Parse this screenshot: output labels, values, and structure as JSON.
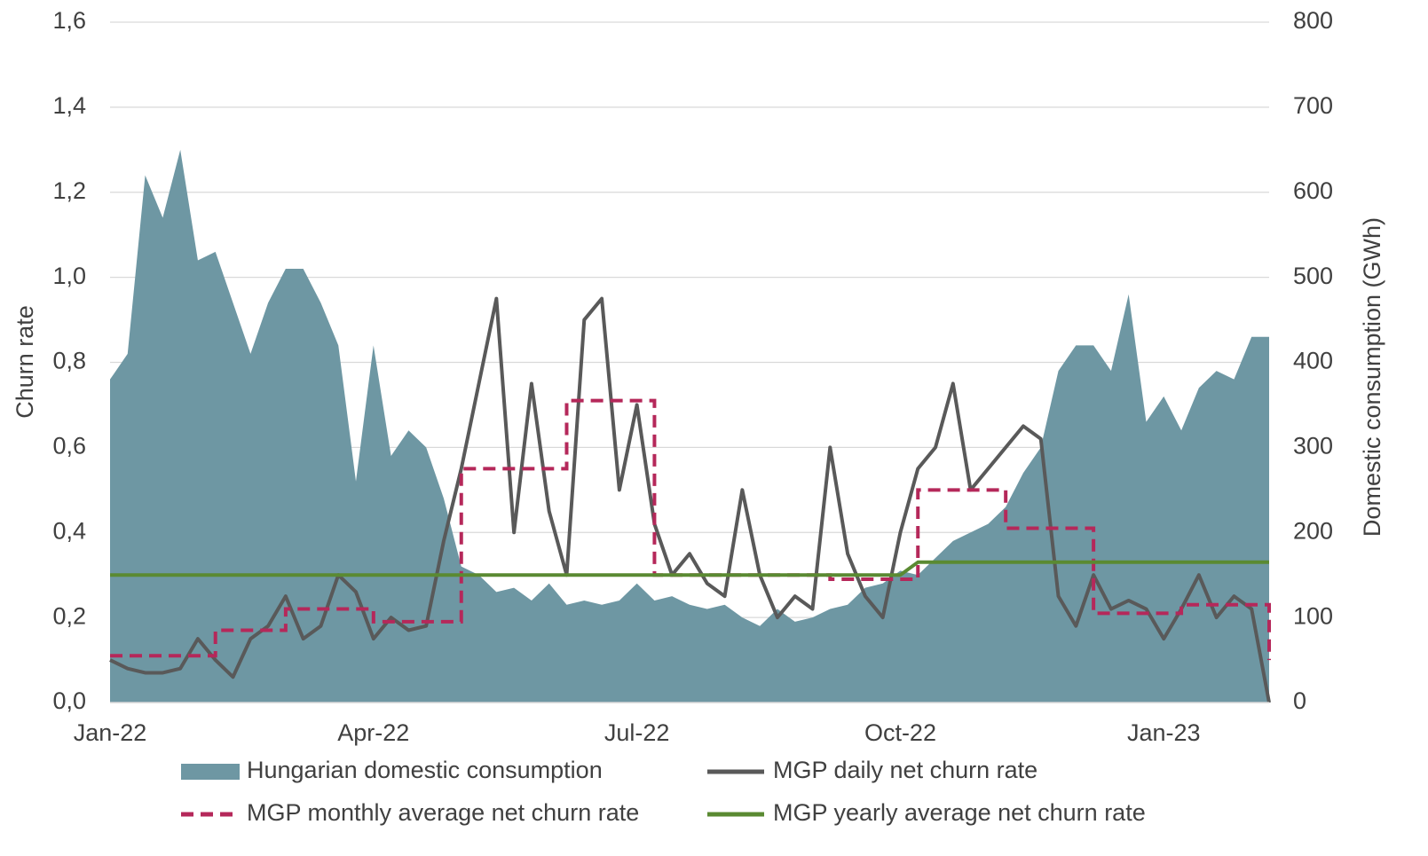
{
  "chart_data": {
    "type": "line",
    "axis_labels": {
      "y": "Churn rate",
      "y2": "Domestic consumption (GWh)"
    },
    "categories": [
      "Jan-22",
      null,
      null,
      null,
      null,
      null,
      null,
      null,
      null,
      null,
      null,
      null,
      null,
      null,
      null,
      "Apr-22",
      null,
      null,
      null,
      null,
      null,
      null,
      null,
      null,
      null,
      null,
      null,
      null,
      null,
      null,
      "Jul-22",
      null,
      null,
      null,
      null,
      null,
      null,
      null,
      null,
      null,
      null,
      null,
      null,
      null,
      null,
      "Oct-22",
      null,
      null,
      null,
      null,
      null,
      null,
      null,
      null,
      null,
      null,
      null,
      null,
      null,
      null,
      "Jan-23",
      null,
      null,
      null,
      null,
      null,
      null
    ],
    "ylim": [
      0,
      1.6
    ],
    "yticks": [
      {
        "value": 0,
        "label": "0,0"
      },
      {
        "value": 0.2,
        "label": "0,2"
      },
      {
        "value": 0.4,
        "label": "0,4"
      },
      {
        "value": 0.6,
        "label": "0,6"
      },
      {
        "value": 0.8,
        "label": "0,8"
      },
      {
        "value": 1.0,
        "label": "1,0"
      },
      {
        "value": 1.2,
        "label": "1,2"
      },
      {
        "value": 1.4,
        "label": "1,4"
      },
      {
        "value": 1.6,
        "label": "1,6"
      }
    ],
    "y2lim": [
      0,
      800
    ],
    "y2ticks": [
      0,
      100,
      200,
      300,
      400,
      500,
      600,
      700,
      800
    ],
    "grid": true,
    "legend": "bottom",
    "series": [
      {
        "name": "Hungarian domestic consumption",
        "color": "#6e97a3",
        "style": "area",
        "axis": "y2",
        "values": [
          380,
          410,
          620,
          570,
          650,
          520,
          530,
          470,
          410,
          470,
          510,
          510,
          470,
          420,
          260,
          420,
          290,
          320,
          300,
          240,
          160,
          150,
          130,
          135,
          120,
          140,
          115,
          120,
          115,
          120,
          140,
          120,
          125,
          115,
          110,
          115,
          100,
          90,
          110,
          95,
          100,
          110,
          115,
          135,
          140,
          155,
          150,
          170,
          190,
          200,
          210,
          230,
          270,
          300,
          390,
          420,
          420,
          390,
          480,
          330,
          360,
          320,
          370,
          390,
          380,
          430,
          430
        ]
      },
      {
        "name": "MGP daily net churn rate",
        "color": "#595959",
        "style": "line",
        "values": [
          0.1,
          0.08,
          0.07,
          0.07,
          0.08,
          0.15,
          0.1,
          0.06,
          0.15,
          0.18,
          0.25,
          0.15,
          0.18,
          0.3,
          0.26,
          0.15,
          0.2,
          0.17,
          0.18,
          0.38,
          0.55,
          0.75,
          0.95,
          0.4,
          0.75,
          0.45,
          0.3,
          0.9,
          0.95,
          0.5,
          0.7,
          0.42,
          0.3,
          0.35,
          0.28,
          0.25,
          0.5,
          0.3,
          0.2,
          0.25,
          0.22,
          0.6,
          0.35,
          0.25,
          0.2,
          0.4,
          0.55,
          0.6,
          0.75,
          0.5,
          0.55,
          0.6,
          0.65,
          0.62,
          0.25,
          0.18,
          0.3,
          0.22,
          0.24,
          0.22,
          0.15,
          0.22,
          0.3,
          0.2,
          0.25,
          0.22,
          0.0
        ]
      },
      {
        "name": "MGP monthly average net churn rate",
        "color": "#b5285a",
        "style": "dashed",
        "values": [
          0.11,
          0.11,
          0.11,
          0.11,
          0.11,
          0.11,
          0.17,
          0.17,
          0.17,
          0.17,
          0.22,
          0.22,
          0.22,
          0.22,
          0.22,
          0.19,
          0.19,
          0.19,
          0.19,
          0.19,
          0.55,
          0.55,
          0.55,
          0.55,
          0.55,
          0.55,
          0.71,
          0.71,
          0.71,
          0.71,
          0.71,
          0.3,
          0.3,
          0.3,
          0.3,
          0.3,
          0.3,
          0.3,
          0.3,
          0.3,
          0.3,
          0.29,
          0.29,
          0.29,
          0.29,
          0.29,
          0.5,
          0.5,
          0.5,
          0.5,
          0.5,
          0.41,
          0.41,
          0.41,
          0.41,
          0.41,
          0.21,
          0.21,
          0.21,
          0.21,
          0.21,
          0.23,
          0.23,
          0.23,
          0.23,
          0.23,
          0.1
        ]
      },
      {
        "name": "MGP yearly average net churn rate",
        "color": "#5a8a32",
        "style": "line",
        "values": [
          0.3,
          0.3,
          0.3,
          0.3,
          0.3,
          0.3,
          0.3,
          0.3,
          0.3,
          0.3,
          0.3,
          0.3,
          0.3,
          0.3,
          0.3,
          0.3,
          0.3,
          0.3,
          0.3,
          0.3,
          0.3,
          0.3,
          0.3,
          0.3,
          0.3,
          0.3,
          0.3,
          0.3,
          0.3,
          0.3,
          0.3,
          0.3,
          0.3,
          0.3,
          0.3,
          0.3,
          0.3,
          0.3,
          0.3,
          0.3,
          0.3,
          0.3,
          0.3,
          0.3,
          0.3,
          0.3,
          0.33,
          0.33,
          0.33,
          0.33,
          0.33,
          0.33,
          0.33,
          0.33,
          0.33,
          0.33,
          0.33,
          0.33,
          0.33,
          0.33,
          0.33,
          0.33,
          0.33,
          0.33,
          0.33,
          0.33,
          0.33
        ]
      }
    ]
  }
}
